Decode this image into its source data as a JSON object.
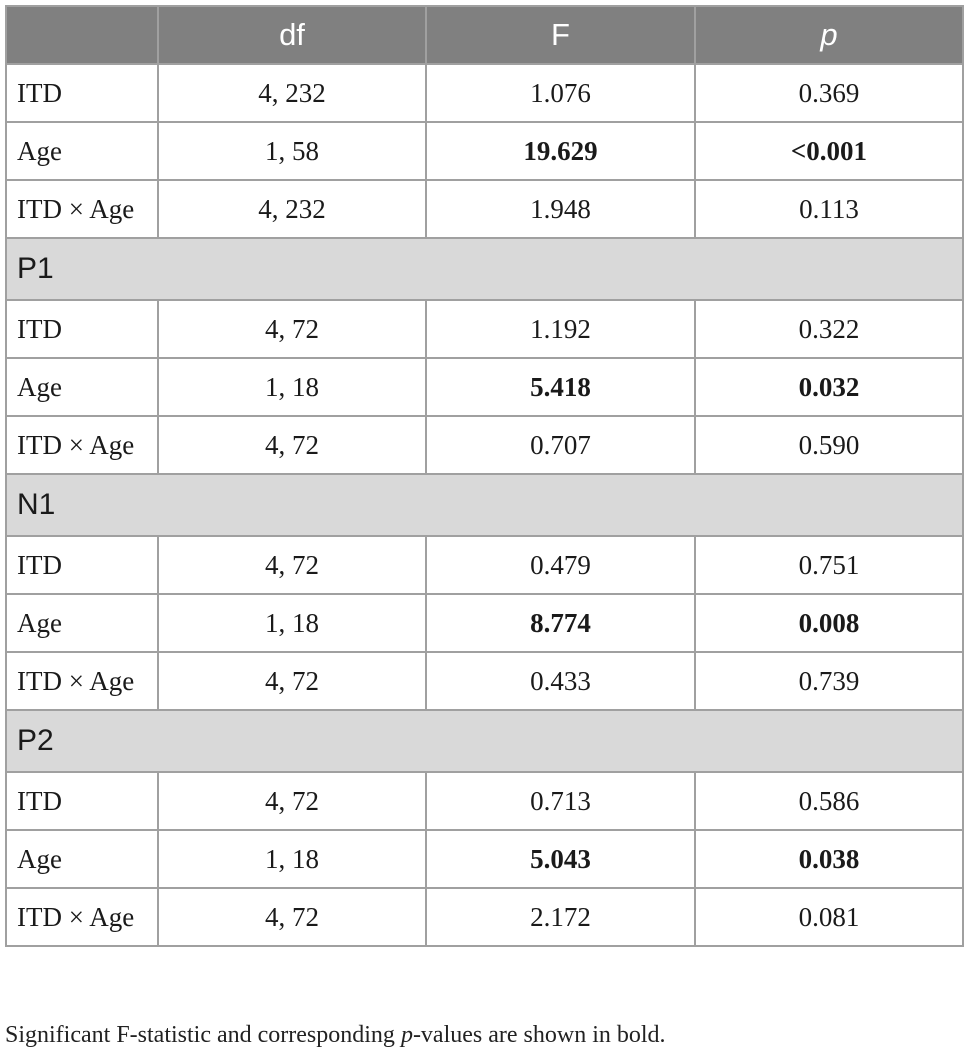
{
  "table": {
    "headers": [
      "",
      "df",
      "F",
      "p"
    ],
    "groups": [
      {
        "section": "",
        "rows": [
          {
            "label": "ITD",
            "df": "4, 232",
            "F": "1.076",
            "p": "0.369",
            "bold_F": false,
            "bold_p": false
          },
          {
            "label": "Age",
            "df": "1, 58",
            "F": "19.629",
            "p": "<0.001",
            "bold_F": true,
            "bold_p": true
          },
          {
            "label": "ITD × Age",
            "df": "4, 232",
            "F": "1.948",
            "p": "0.113",
            "bold_F": false,
            "bold_p": false
          }
        ]
      },
      {
        "section": "P1",
        "rows": [
          {
            "label": "ITD",
            "df": "4, 72",
            "F": "1.192",
            "p": "0.322",
            "bold_F": false,
            "bold_p": false
          },
          {
            "label": "Age",
            "df": "1, 18",
            "F": "5.418",
            "p": "0.032",
            "bold_F": true,
            "bold_p": true
          },
          {
            "label": "ITD × Age",
            "df": "4, 72",
            "F": "0.707",
            "p": "0.590",
            "bold_F": false,
            "bold_p": false
          }
        ]
      },
      {
        "section": "N1",
        "rows": [
          {
            "label": "ITD",
            "df": "4, 72",
            "F": "0.479",
            "p": "0.751",
            "bold_F": false,
            "bold_p": false
          },
          {
            "label": "Age",
            "df": "1, 18",
            "F": "8.774",
            "p": "0.008",
            "bold_F": true,
            "bold_p": true
          },
          {
            "label": "ITD × Age",
            "df": "4, 72",
            "F": "0.433",
            "p": "0.739",
            "bold_F": false,
            "bold_p": false
          }
        ]
      },
      {
        "section": "P2",
        "rows": [
          {
            "label": "ITD",
            "df": "4, 72",
            "F": "0.713",
            "p": "0.586",
            "bold_F": false,
            "bold_p": false
          },
          {
            "label": "Age",
            "df": "1, 18",
            "F": "5.043",
            "p": "0.038",
            "bold_F": true,
            "bold_p": true
          },
          {
            "label": "ITD × Age",
            "df": "4, 72",
            "F": "2.172",
            "p": "0.081",
            "bold_F": false,
            "bold_p": false
          }
        ]
      }
    ]
  },
  "footnote": {
    "before": "Significant F-statistic and corresponding ",
    "italic": "p",
    "after": "-values are shown in bold."
  }
}
